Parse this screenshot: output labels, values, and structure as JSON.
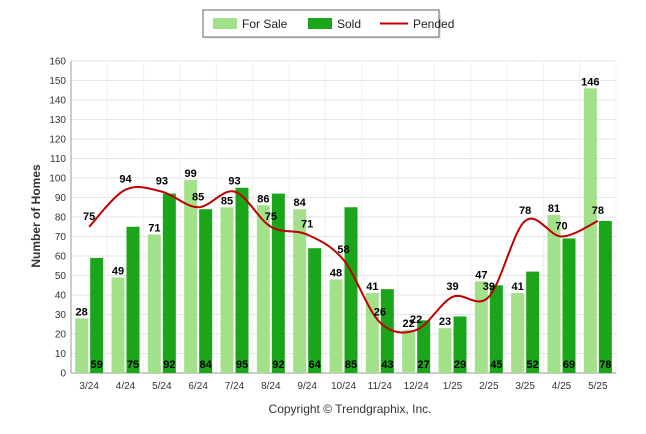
{
  "chart_data": {
    "type": "bar",
    "title": "",
    "xlabel": "",
    "ylabel": "Number of Homes",
    "ylim": [
      0,
      160
    ],
    "yticks": [
      0,
      10,
      20,
      30,
      40,
      50,
      60,
      70,
      80,
      90,
      100,
      110,
      120,
      130,
      140,
      150,
      160
    ],
    "categories": [
      "3/24",
      "4/24",
      "5/24",
      "6/24",
      "7/24",
      "8/24",
      "9/24",
      "10/24",
      "11/24",
      "12/24",
      "1/25",
      "2/25",
      "3/25",
      "4/25",
      "5/25"
    ],
    "series": [
      {
        "name": "For Sale",
        "type": "bar",
        "color": "#a3e08a",
        "values": [
          28,
          49,
          71,
          99,
          85,
          86,
          84,
          48,
          41,
          22,
          23,
          47,
          41,
          81,
          146
        ]
      },
      {
        "name": "Sold",
        "type": "bar",
        "color": "#1aa51a",
        "values": [
          59,
          75,
          92,
          84,
          95,
          92,
          64,
          85,
          43,
          27,
          29,
          45,
          52,
          69,
          78
        ]
      },
      {
        "name": "Pended",
        "type": "line",
        "color": "#c00000",
        "values": [
          75,
          94,
          93,
          85,
          93,
          75,
          71,
          58,
          26,
          22,
          39,
          39,
          78,
          70,
          78
        ]
      }
    ],
    "grid": true,
    "legend": "top-center"
  },
  "footer": {
    "copyright": "Copyright © Trendgraphix, Inc."
  }
}
